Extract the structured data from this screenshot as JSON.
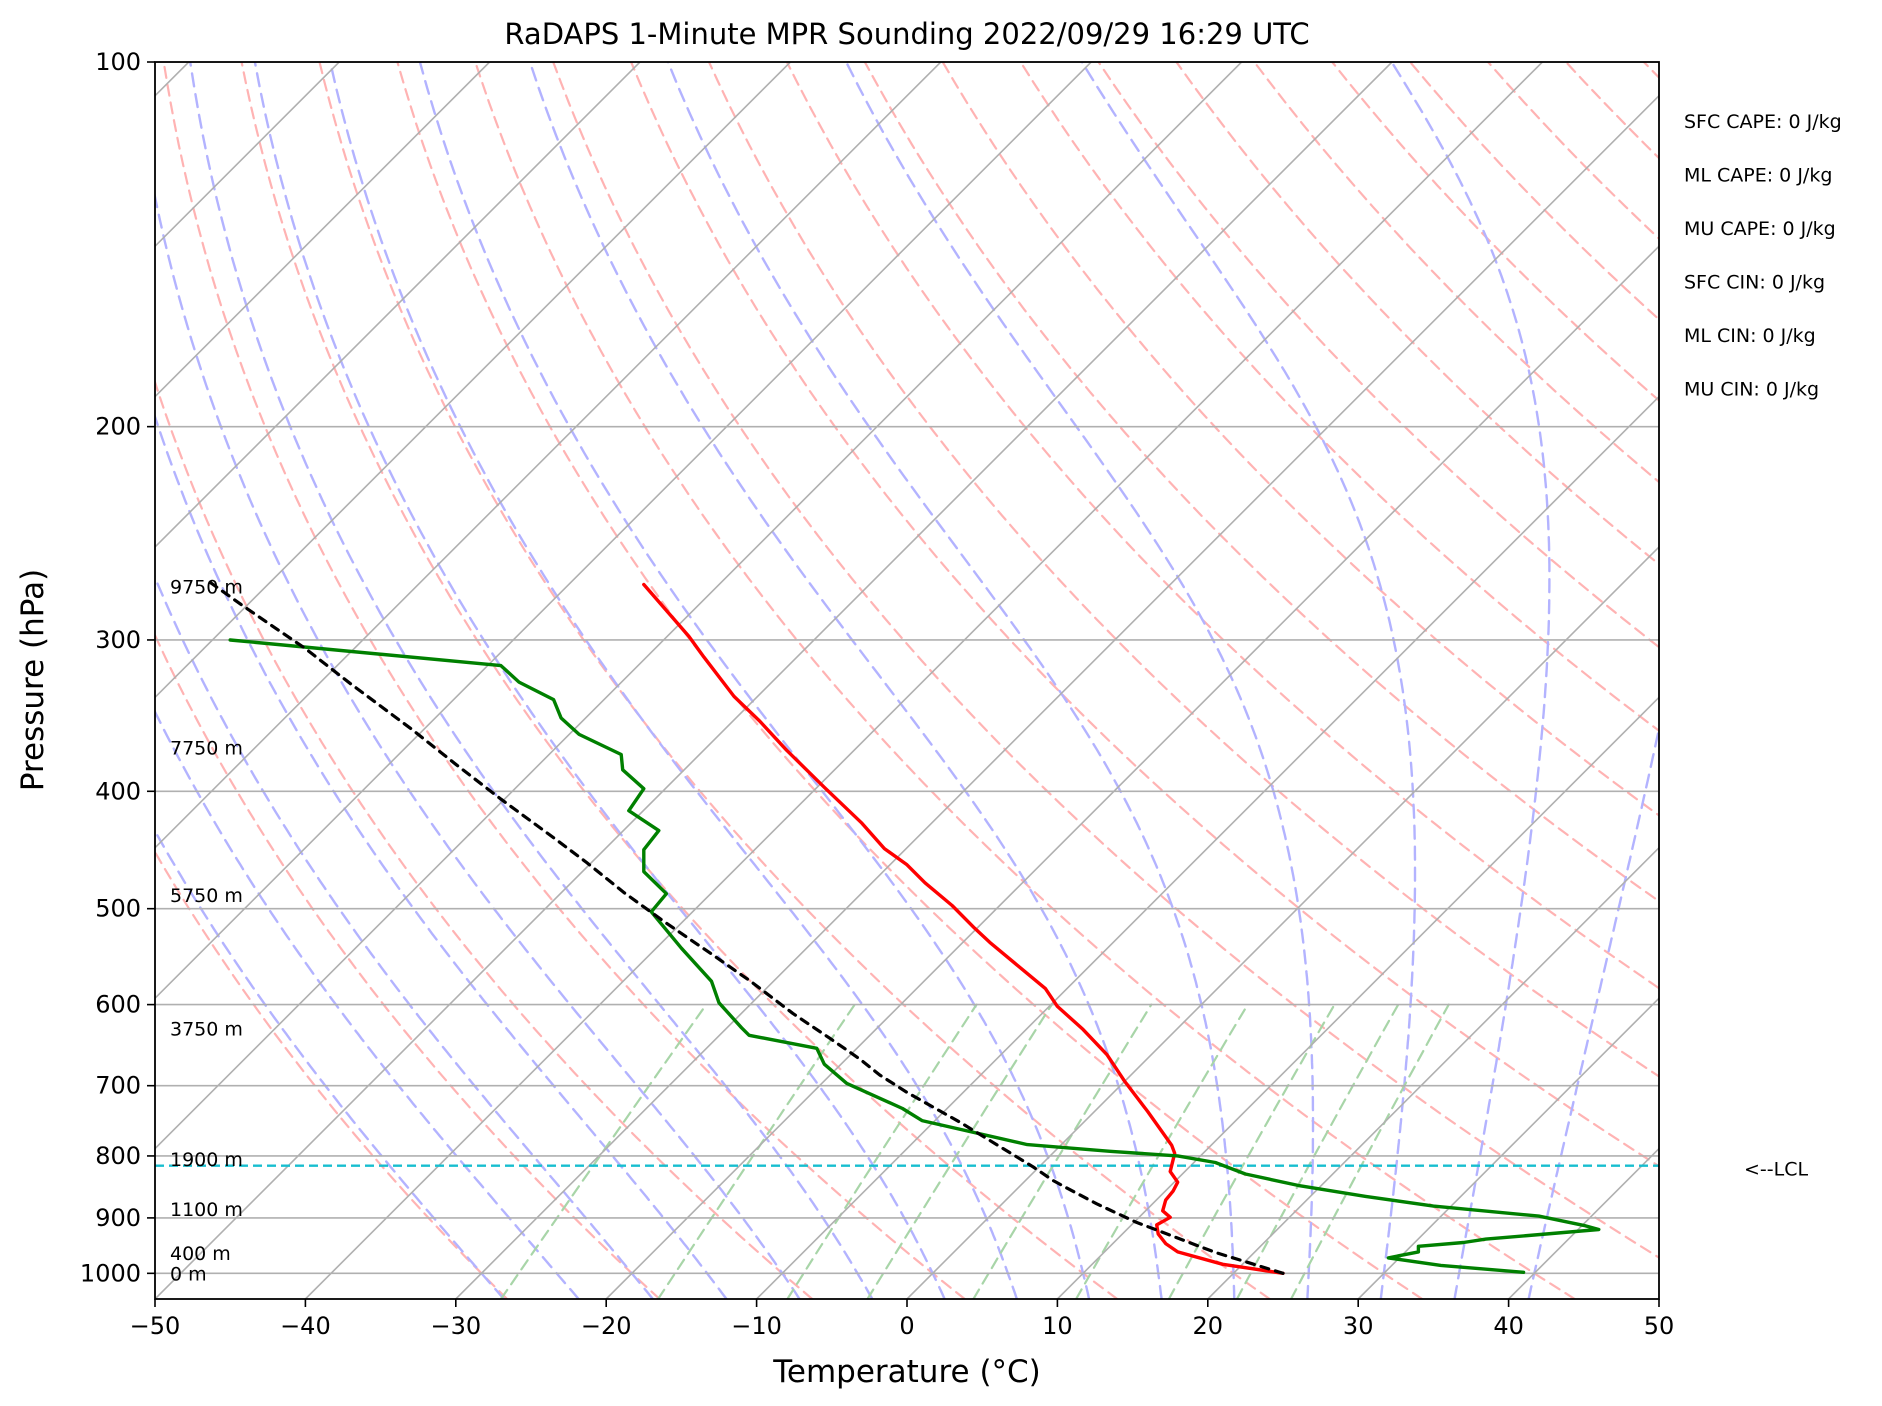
{
  "chart_data": {
    "type": "line",
    "title": "RaDAPS 1-Minute MPR Sounding 2022/09/29 16:29 UTC",
    "xlabel": "Temperature (°C)",
    "ylabel": "Pressure (hPa)",
    "xlim": [
      -50,
      50
    ],
    "ylim": [
      1050,
      100
    ],
    "y_scale": "log",
    "skew": "temperature isotherms skewed 45° to the right",
    "grid": true,
    "x_ticks": [
      "−50",
      "−40",
      "−30",
      "−20",
      "−10",
      "0",
      "10",
      "20",
      "30",
      "40",
      "50"
    ],
    "y_ticks": [
      {
        "p": 100,
        "label": "100"
      },
      {
        "p": 200,
        "label": "200"
      },
      {
        "p": 300,
        "label": "300"
      },
      {
        "p": 400,
        "label": "400"
      },
      {
        "p": 500,
        "label": "500"
      },
      {
        "p": 600,
        "label": "600"
      },
      {
        "p": 700,
        "label": "700"
      },
      {
        "p": 800,
        "label": "800"
      },
      {
        "p": 900,
        "label": "900"
      },
      {
        "p": 1000,
        "label": "1000"
      }
    ],
    "series": [
      {
        "role": "temperature",
        "color": "#ff0000",
        "points": [
          [
            -17.5,
            270
          ],
          [
            -14.5,
            298
          ],
          [
            -13.5,
            310
          ],
          [
            -11.5,
            334
          ],
          [
            -9.8,
            350
          ],
          [
            -8.0,
            370
          ],
          [
            -5.5,
            397
          ],
          [
            -3,
            425
          ],
          [
            -1.5,
            446
          ],
          [
            0,
            460
          ],
          [
            1.2,
            476
          ],
          [
            3,
            497
          ],
          [
            4.5,
            519
          ],
          [
            5.5,
            533
          ],
          [
            7.8,
            563
          ],
          [
            9.2,
            582
          ],
          [
            10,
            602
          ],
          [
            11.7,
            629
          ],
          [
            13.3,
            660
          ],
          [
            14.5,
            695
          ],
          [
            16,
            735
          ],
          [
            17.6,
            784
          ],
          [
            17.8,
            796
          ],
          [
            17.5,
            824
          ],
          [
            18,
            841
          ],
          [
            17.7,
            855
          ],
          [
            17.2,
            870
          ],
          [
            17,
            888
          ],
          [
            17.5,
            899
          ],
          [
            16.6,
            912
          ],
          [
            16.7,
            928
          ],
          [
            17.2,
            945
          ],
          [
            18,
            960
          ],
          [
            21,
            983
          ],
          [
            25,
            1000
          ]
        ]
      },
      {
        "role": "dewpoint",
        "color": "#008000",
        "points": [
          [
            -45,
            300
          ],
          [
            -27,
            315
          ],
          [
            -25.8,
            325
          ],
          [
            -23.5,
            336
          ],
          [
            -23,
            348
          ],
          [
            -21.8,
            359
          ],
          [
            -19,
            373
          ],
          [
            -18.9,
            384
          ],
          [
            -17.5,
            398
          ],
          [
            -18.5,
            415
          ],
          [
            -16.5,
            431
          ],
          [
            -17.5,
            447
          ],
          [
            -17.5,
            466
          ],
          [
            -16,
            486
          ],
          [
            -17,
            503
          ],
          [
            -15,
            539
          ],
          [
            -13,
            574
          ],
          [
            -12.5,
            598
          ],
          [
            -11,
            627
          ],
          [
            -10.5,
            636
          ],
          [
            -6,
            652
          ],
          [
            -5.5,
            672
          ],
          [
            -4,
            697
          ],
          [
            -0.3,
            731
          ],
          [
            1,
            748
          ],
          [
            8,
            783
          ],
          [
            13.5,
            793
          ],
          [
            18,
            800
          ],
          [
            20.5,
            810
          ],
          [
            22.5,
            828
          ],
          [
            26,
            846
          ],
          [
            30.5,
            864
          ],
          [
            35,
            880
          ],
          [
            42,
            897
          ],
          [
            45,
            913
          ],
          [
            46,
            920
          ],
          [
            42.5,
            928
          ],
          [
            38.5,
            937
          ],
          [
            37,
            943
          ],
          [
            34,
            950
          ],
          [
            34,
            960
          ],
          [
            32,
            971
          ],
          [
            35.5,
            985
          ],
          [
            41,
            998
          ]
        ]
      },
      {
        "role": "parcel",
        "color": "#000000",
        "dash": "8 7",
        "points": [
          [
            25,
            1000
          ],
          [
            20.5,
            961
          ],
          [
            15.2,
            907
          ],
          [
            12.6,
            876
          ],
          [
            10.6,
            850
          ],
          [
            9.7,
            838
          ],
          [
            8.4,
            817
          ],
          [
            3.5,
            750
          ],
          [
            0,
            709
          ],
          [
            -1.8,
            686
          ],
          [
            -3.1,
            666
          ],
          [
            -5.1,
            640
          ],
          [
            -7.6,
            610
          ],
          [
            -10.4,
            574
          ],
          [
            -13,
            545
          ],
          [
            -16,
            514
          ],
          [
            -18.8,
            485
          ],
          [
            -21.3,
            458
          ],
          [
            -23.6,
            436
          ],
          [
            -27,
            406
          ],
          [
            -30,
            380
          ],
          [
            -33,
            355
          ],
          [
            -37,
            326
          ],
          [
            -40,
            305
          ],
          [
            -44,
            282
          ],
          [
            -46.5,
            268
          ]
        ]
      }
    ],
    "lcl_hpa": 815,
    "height_labels": [
      {
        "text": "9750 m",
        "p": 271
      },
      {
        "text": "7750 m",
        "p": 368
      },
      {
        "text": "5750 m",
        "p": 487
      },
      {
        "text": "3750 m",
        "p": 628
      },
      {
        "text": "1900 m",
        "p": 805
      },
      {
        "text": "1100 m",
        "p": 885
      },
      {
        "text": "400 m",
        "p": 962
      },
      {
        "text": "0 m",
        "p": 1000
      }
    ],
    "annotations": [
      {
        "text": "SFC CAPE: 0 J/kg"
      },
      {
        "text": "ML CAPE: 0 J/kg"
      },
      {
        "text": "MU CAPE: 0 J/kg"
      },
      {
        "text": "SFC CIN: 0 J/kg"
      },
      {
        "text": "ML CIN: 0 J/kg"
      },
      {
        "text": "MU CIN: 0 J/kg"
      }
    ],
    "lcl_label": "<--LCL",
    "colors": {
      "temperature": "#ff0000",
      "dewpoint": "#008000",
      "parcel": "#000000",
      "lcl_line": "#17becf",
      "dry_adiabats": "#ffb3b3",
      "moist_adiabats": "#b3b3ff",
      "mixing_ratio": "#a8d5a8",
      "isotherms": "#b0b0b0",
      "isobars": "#b0b0b0"
    }
  }
}
